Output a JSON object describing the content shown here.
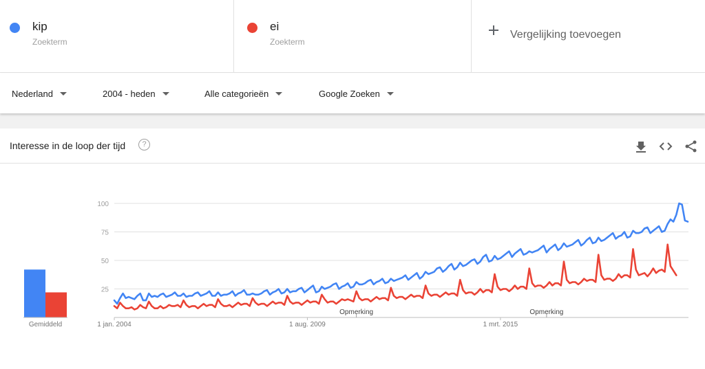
{
  "terms": [
    {
      "name": "kip",
      "sub": "Zoekterm",
      "color": "#4285f4"
    },
    {
      "name": "ei",
      "sub": "Zoekterm",
      "color": "#ea4335"
    }
  ],
  "add_label": "Vergelijking toevoegen",
  "filters": {
    "region": "Nederland",
    "period": "2004 - heden",
    "category": "Alle categorieën",
    "property": "Google Zoeken"
  },
  "card": {
    "title": "Interesse in de loop der tijd",
    "help": "?"
  },
  "icons": {
    "help": "help-icon",
    "download": "download-icon",
    "embed": "embed-code-icon",
    "share": "share-icon"
  },
  "chart_data": {
    "type": "line",
    "x_start": "2004-01",
    "x_frequency": "monthly",
    "xlabels": [
      "1 jan. 2004",
      "1 aug. 2009",
      "1 mrt. 2015"
    ],
    "yticks": [
      100,
      75,
      50,
      25
    ],
    "ylim": [
      0,
      100
    ],
    "averages_label": "Gemiddeld",
    "averages": [
      {
        "name": "kip",
        "value": 42
      },
      {
        "name": "ei",
        "value": 22
      }
    ],
    "notes": [
      {
        "label": "Opmerking",
        "at": "2011-01"
      },
      {
        "label": "Opmerking",
        "at": "2016-07"
      }
    ],
    "series": [
      {
        "name": "kip",
        "color": "#4285f4",
        "values": [
          15,
          12,
          17,
          21,
          17,
          18,
          17,
          16,
          19,
          21,
          15,
          15,
          21,
          18,
          19,
          18,
          20,
          21,
          18,
          19,
          20,
          22,
          19,
          19,
          21,
          18,
          19,
          19,
          21,
          22,
          19,
          20,
          21,
          23,
          19,
          19,
          22,
          19,
          20,
          20,
          21,
          23,
          19,
          21,
          22,
          24,
          20,
          20,
          21,
          20,
          20,
          21,
          23,
          24,
          20,
          22,
          23,
          25,
          21,
          22,
          25,
          22,
          23,
          23,
          25,
          26,
          22,
          24,
          26,
          28,
          22,
          23,
          27,
          25,
          26,
          27,
          29,
          30,
          25,
          27,
          28,
          30,
          26,
          27,
          31,
          29,
          29,
          30,
          32,
          33,
          29,
          31,
          32,
          34,
          30,
          31,
          34,
          32,
          33,
          34,
          35,
          37,
          33,
          35,
          37,
          39,
          34,
          36,
          40,
          38,
          39,
          40,
          43,
          44,
          40,
          42,
          45,
          47,
          42,
          44,
          48,
          45,
          46,
          48,
          50,
          51,
          47,
          49,
          53,
          55,
          49,
          50,
          54,
          51,
          52,
          54,
          56,
          58,
          53,
          56,
          58,
          60,
          55,
          56,
          58,
          57,
          58,
          59,
          61,
          63,
          57,
          60,
          62,
          64,
          59,
          61,
          65,
          62,
          63,
          64,
          66,
          68,
          63,
          65,
          68,
          70,
          65,
          66,
          70,
          67,
          68,
          70,
          72,
          74,
          69,
          71,
          72,
          75,
          70,
          71,
          76,
          74,
          74,
          75,
          78,
          79,
          74,
          76,
          78,
          80,
          75,
          76,
          82,
          86,
          84,
          90,
          100,
          99,
          85,
          84
        ]
      },
      {
        "name": "ei",
        "color": "#ea4335",
        "values": [
          10,
          8,
          13,
          10,
          8,
          8,
          9,
          7,
          8,
          11,
          9,
          8,
          14,
          10,
          8,
          8,
          10,
          8,
          9,
          11,
          10,
          10,
          11,
          9,
          15,
          11,
          9,
          10,
          10,
          8,
          10,
          12,
          10,
          11,
          11,
          9,
          16,
          12,
          10,
          10,
          11,
          9,
          11,
          13,
          11,
          12,
          12,
          10,
          17,
          13,
          11,
          12,
          12,
          10,
          12,
          14,
          12,
          13,
          13,
          11,
          19,
          14,
          12,
          13,
          13,
          11,
          13,
          15,
          13,
          14,
          14,
          12,
          20,
          16,
          13,
          14,
          14,
          12,
          14,
          16,
          15,
          16,
          15,
          14,
          23,
          17,
          15,
          16,
          16,
          14,
          16,
          18,
          16,
          17,
          17,
          15,
          26,
          19,
          17,
          18,
          18,
          16,
          18,
          20,
          18,
          19,
          19,
          17,
          28,
          21,
          19,
          20,
          20,
          18,
          20,
          22,
          20,
          21,
          21,
          19,
          33,
          24,
          21,
          22,
          22,
          20,
          22,
          25,
          22,
          24,
          24,
          22,
          38,
          27,
          24,
          25,
          25,
          23,
          25,
          28,
          25,
          27,
          27,
          25,
          43,
          30,
          27,
          28,
          28,
          26,
          28,
          31,
          28,
          30,
          30,
          28,
          49,
          33,
          30,
          31,
          31,
          29,
          31,
          34,
          32,
          33,
          33,
          31,
          55,
          37,
          33,
          34,
          34,
          32,
          34,
          38,
          35,
          37,
          37,
          35,
          60,
          42,
          37,
          38,
          39,
          36,
          39,
          43,
          39,
          41,
          42,
          40,
          64,
          45,
          41,
          37
        ]
      }
    ]
  }
}
